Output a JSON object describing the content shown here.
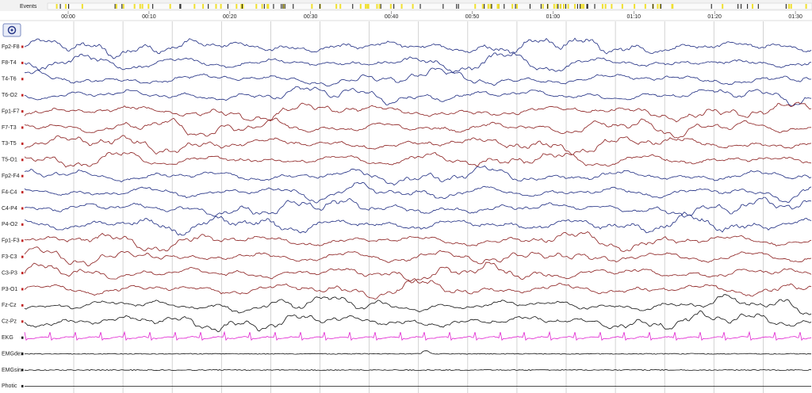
{
  "header": {
    "events_label": "Events"
  },
  "timeline": {
    "labels": [
      "00:00",
      "00:10",
      "00:20",
      "00:30",
      "00:40",
      "00:50",
      "01:00",
      "01:10",
      "01:20",
      "01:30"
    ]
  },
  "channels": [
    {
      "label": "Fp2-F8"
    },
    {
      "label": "F8-T4"
    },
    {
      "label": "T4-T6"
    },
    {
      "label": "T6-O2"
    },
    {
      "label": "Fp1-F7"
    },
    {
      "label": "F7-T3"
    },
    {
      "label": "T3-T5"
    },
    {
      "label": "T5-O1"
    },
    {
      "label": "Fp2-F4"
    },
    {
      "label": "F4-C4"
    },
    {
      "label": "C4-P4"
    },
    {
      "label": "P4-O2"
    },
    {
      "label": "Fp1-F3"
    },
    {
      "label": "F3-C3"
    },
    {
      "label": "C3-P3"
    },
    {
      "label": "P3-O1"
    },
    {
      "label": "Fz-Cz"
    },
    {
      "label": "Cz-Pz"
    },
    {
      "label": "EKG"
    },
    {
      "label": "EMGdex"
    },
    {
      "label": "EMGsin"
    },
    {
      "label": "Photic"
    }
  ]
}
